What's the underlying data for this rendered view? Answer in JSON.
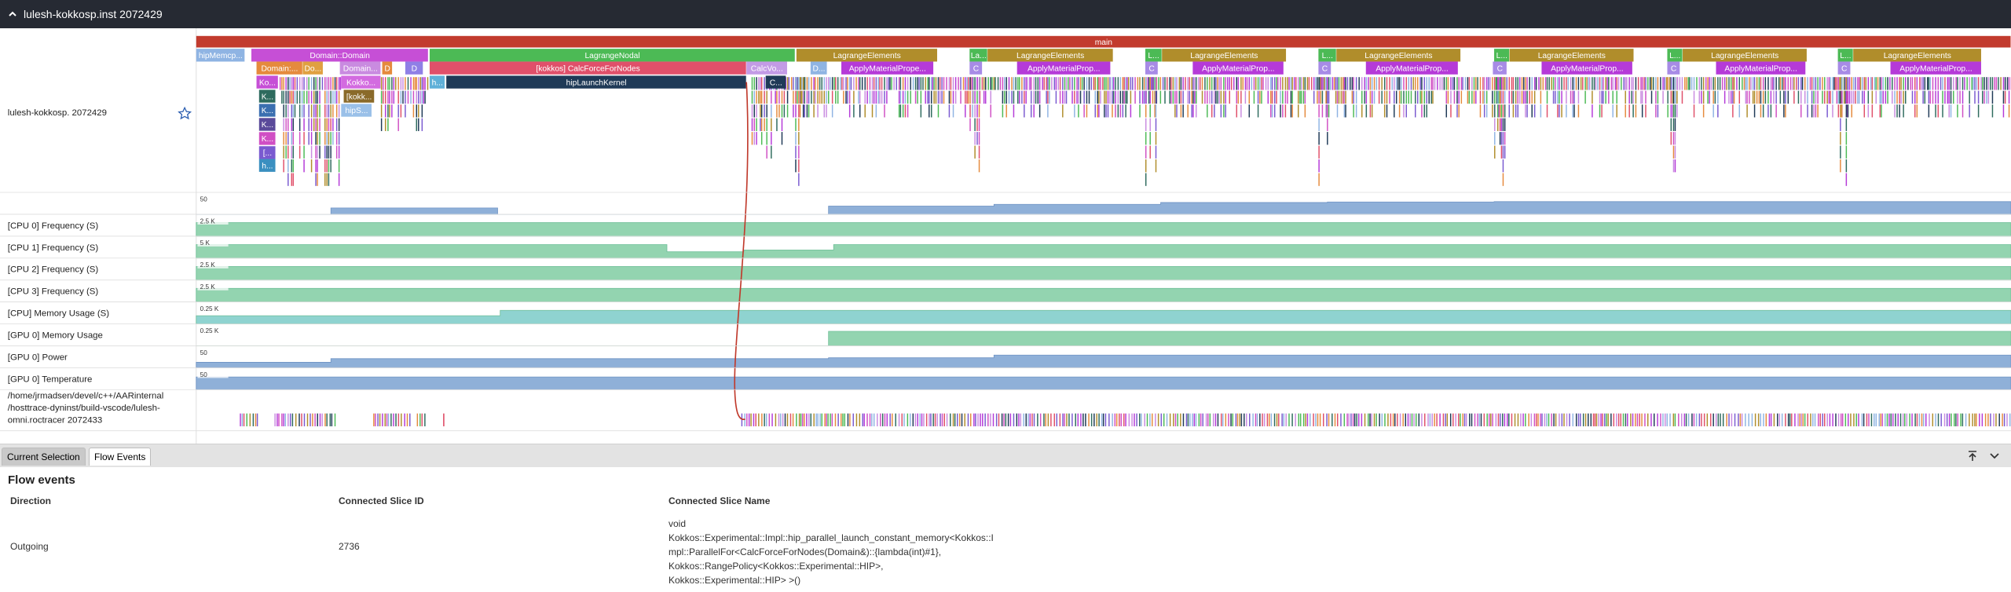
{
  "header": {
    "title": "lulesh-kokkosp.inst 2072429"
  },
  "process_track": {
    "label": "lulesh-kokkosp. 2072429",
    "slices": [
      {
        "name": "main"
      },
      {
        "name": "hipMemcp..."
      },
      {
        "name": "Domain::Domain"
      },
      {
        "name": "LagrangeNodal"
      },
      {
        "name": "LagrangeElements"
      },
      {
        "name": "La..."
      },
      {
        "name": "LagrangeElements"
      },
      {
        "name": "L..."
      },
      {
        "name": "LagrangeElements"
      },
      {
        "name": "L..."
      },
      {
        "name": "LagrangeElements"
      },
      {
        "name": "L..."
      },
      {
        "name": "LagrangeElements"
      },
      {
        "name": "L..."
      },
      {
        "name": "LagrangeElements"
      },
      {
        "name": "L..."
      },
      {
        "name": "LagrangeElements"
      },
      {
        "name": "Domain:..."
      },
      {
        "name": "Do..."
      },
      {
        "name": "Domain..."
      },
      {
        "name": "D"
      },
      {
        "name": "D"
      },
      {
        "name": "[kokkos] CalcForceForNodes"
      },
      {
        "name": "CalcVo..."
      },
      {
        "name": "D..."
      },
      {
        "name": "ApplyMaterialPrope..."
      },
      {
        "name": "C"
      },
      {
        "name": "ApplyMaterialProp..."
      },
      {
        "name": "C"
      },
      {
        "name": "ApplyMaterialProp..."
      },
      {
        "name": "C"
      },
      {
        "name": "ApplyMaterialProp..."
      },
      {
        "name": "C"
      },
      {
        "name": "ApplyMaterialProp..."
      },
      {
        "name": "C"
      },
      {
        "name": "ApplyMaterialProp..."
      },
      {
        "name": "C"
      },
      {
        "name": "ApplyMaterialProp..."
      },
      {
        "name": "Ko..."
      },
      {
        "name": "Kokko..."
      },
      {
        "name": "h..."
      },
      {
        "name": "hipLaunchKernel"
      },
      {
        "name": "C..."
      },
      {
        "name": "K..."
      },
      {
        "name": "[kokk..."
      },
      {
        "name": "K..."
      },
      {
        "name": "hipS..."
      },
      {
        "name": "K..."
      },
      {
        "name": "K..."
      },
      {
        "name": "[..."
      },
      {
        "name": "h..."
      }
    ]
  },
  "counter_tracks": [
    {
      "scale": "50"
    },
    {
      "label": "[CPU 0] Frequency (S)",
      "scale": "2.5 K"
    },
    {
      "label": "[CPU 1] Frequency (S)",
      "scale": "5 K"
    },
    {
      "label": "[CPU 2] Frequency (S)",
      "scale": "2.5 K"
    },
    {
      "label": "[CPU 3] Frequency (S)",
      "scale": "2.5 K"
    },
    {
      "label": "[CPU] Memory Usage (S)",
      "scale": "0.25 K"
    },
    {
      "label": "[GPU 0] Memory Usage",
      "scale": "0.25 K"
    },
    {
      "label": "[GPU 0] Power",
      "scale": "50"
    },
    {
      "label": "[GPU 0] Temperature",
      "scale": "50"
    }
  ],
  "thread_track": {
    "label_lines": [
      "/home/jrmadsen/devel/c++/AARinternal",
      "/hosttrace-dyninst/build-vscode/lulesh-",
      "omni.roctracer 2072433"
    ]
  },
  "details": {
    "tabs": [
      "Current Selection",
      "Flow Events"
    ],
    "title": "Flow events",
    "columns": [
      "Direction",
      "Connected Slice ID",
      "Connected Slice Name"
    ],
    "rows": [
      {
        "direction": "Outgoing",
        "slice_id": "2736",
        "name_lines": [
          "void",
          "Kokkos::Experimental::Impl::hip_parallel_launch_constant_memory<Kokkos::I",
          "mpl::ParallelFor<CalcForceForNodes(Domain&)::{lambda(int)#1},",
          "Kokkos::RangePolicy<Kokkos::Experimental::HIP>,",
          "Kokkos::Experimental::HIP> >()"
        ]
      }
    ]
  }
}
